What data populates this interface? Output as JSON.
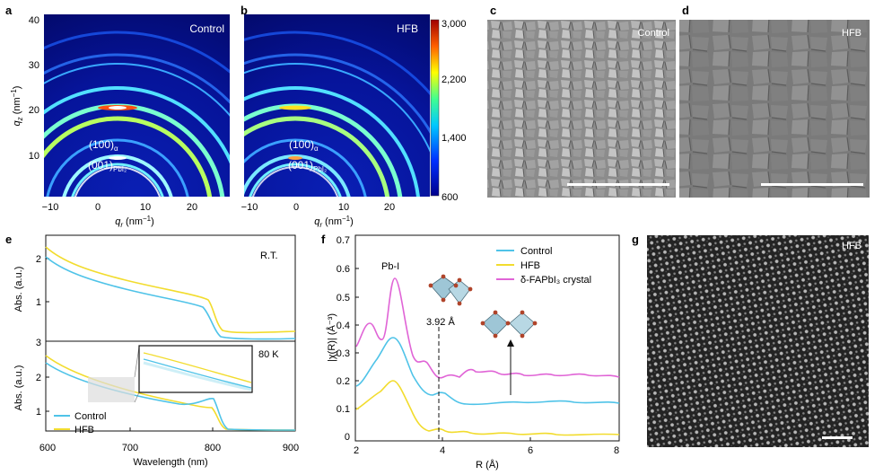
{
  "panels": {
    "a": {
      "letter": "a",
      "tag": "Control",
      "peak_upper": "(100)",
      "peak_upper_sub": "α",
      "peak_lower": "(001)",
      "peak_lower_sub": "PbI₂",
      "ylabel": "q_z (nm⁻¹)",
      "xlabel": "q_r (nm⁻¹)",
      "yticks": [
        "40",
        "30",
        "20",
        "10"
      ],
      "xticks": [
        "−10",
        "0",
        "10",
        "20"
      ]
    },
    "b": {
      "letter": "b",
      "tag": "HFB",
      "peak_upper": "(100)",
      "peak_upper_sub": "α",
      "peak_lower": "(001)",
      "peak_lower_sub": "PbI₂",
      "xlabel": "q_r (nm⁻¹)",
      "xticks": [
        "−10",
        "0",
        "10",
        "20"
      ]
    },
    "colorbar": {
      "ticks": [
        "3,000",
        "2,200",
        "1,400",
        "600"
      ]
    },
    "c": {
      "letter": "c",
      "tag": "Control"
    },
    "d": {
      "letter": "d",
      "tag": "HFB"
    },
    "e": {
      "letter": "e",
      "top_label": "R.T.",
      "bottom_label": "80 K",
      "ylabel": "Abs. (a.u.)",
      "xlabel": "Wavelength (nm)",
      "top_yticks": [
        "2",
        "1"
      ],
      "bottom_yticks": [
        "3",
        "2",
        "1"
      ],
      "xticks": [
        "600",
        "700",
        "800",
        "900"
      ],
      "legend": [
        {
          "name": "Control",
          "color": "#4fc3e8"
        },
        {
          "name": "HFB",
          "color": "#f2dc2e"
        }
      ]
    },
    "f": {
      "letter": "f",
      "peak_label": "Pb-I",
      "distance_label": "3.92 Å",
      "ylabel": "|χ(R)| (Å⁻³)",
      "xlabel": "R (Å)",
      "yticks": [
        "0.7",
        "0.6",
        "0.5",
        "0.4",
        "0.3",
        "0.2",
        "0.1",
        "0"
      ],
      "xticks": [
        "2",
        "4",
        "6",
        "8"
      ],
      "legend": [
        {
          "name": "Control",
          "color": "#4fc3e8"
        },
        {
          "name": "HFB",
          "color": "#f2dc2e"
        },
        {
          "name": "δ-FAPbI₃ crystal",
          "color": "#e064d6"
        }
      ]
    },
    "g": {
      "letter": "g",
      "tag": "HFB"
    }
  },
  "colors": {
    "control": "#4fc3e8",
    "hfb": "#f2dc2e",
    "delta": "#e064d6"
  }
}
